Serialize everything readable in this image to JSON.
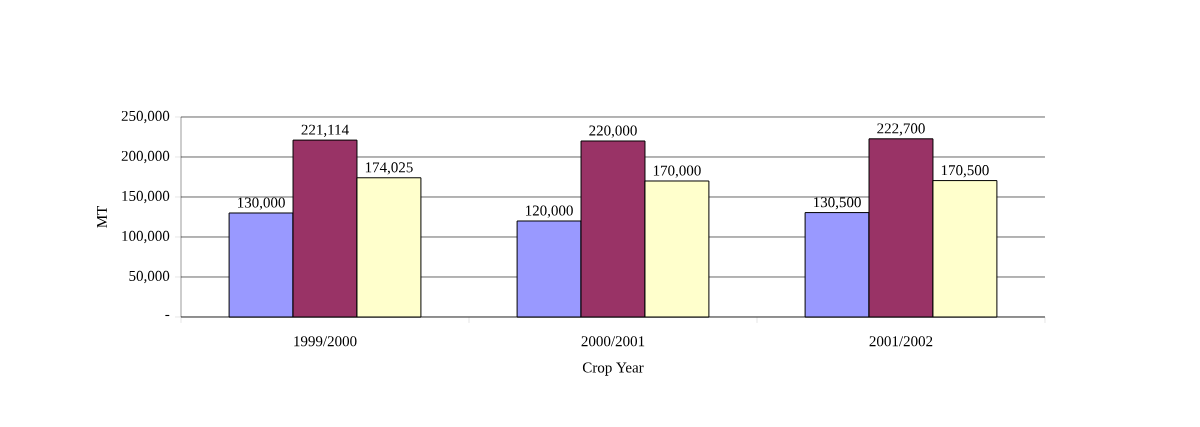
{
  "chart_data": {
    "type": "bar",
    "xlabel": "Crop Year",
    "ylabel": "MT",
    "categories": [
      "1999/2000",
      "2000/2001",
      "2001/2002"
    ],
    "series": [
      {
        "color": "#9999ff",
        "values": [
          130000,
          120000,
          130500
        ],
        "value_labels": [
          "130,000",
          "120,000",
          "130,500"
        ]
      },
      {
        "color": "#993366",
        "values": [
          221114,
          220000,
          222700
        ],
        "value_labels": [
          "221,114",
          "220,000",
          "222,700"
        ]
      },
      {
        "color": "#ffffcc",
        "values": [
          174025,
          170000,
          170500
        ],
        "value_labels": [
          "174,025",
          "170,000",
          "170,500"
        ]
      }
    ],
    "ylim": [
      0,
      250000
    ],
    "yticks": [
      {
        "value": 0,
        "label": "-"
      },
      {
        "value": 50000,
        "label": "50,000"
      },
      {
        "value": 100000,
        "label": "100,000"
      },
      {
        "value": 150000,
        "label": "150,000"
      },
      {
        "value": 200000,
        "label": "200,000"
      },
      {
        "value": 250000,
        "label": "250,000"
      }
    ],
    "grid": "y"
  }
}
